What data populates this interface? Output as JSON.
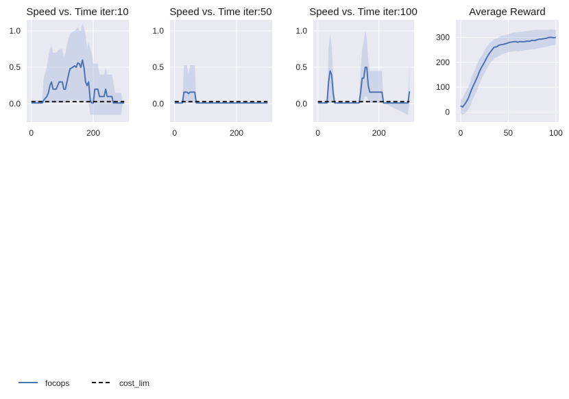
{
  "colors": {
    "panel_bg": "#e8e9f1",
    "grid": "#ffffff",
    "series": "#4c72b0",
    "band": "#b8c5e0",
    "limit": "#111111"
  },
  "legend": {
    "items": [
      {
        "label": "focops",
        "style": "solid"
      },
      {
        "label": "cost_lim",
        "style": "dashed"
      }
    ],
    "placement": "bottom-left"
  },
  "chart_data": [
    {
      "type": "line",
      "title": "Speed vs. Time iter:10",
      "xlim": [
        -15,
        315
      ],
      "ylim": [
        -0.25,
        1.15
      ],
      "xticks": [
        0,
        200
      ],
      "yticks": [
        0.0,
        0.5,
        1.0
      ],
      "xtick_labels": [
        "0",
        "200"
      ],
      "ytick_labels": [
        "0.0",
        "0.5",
        "1.0"
      ],
      "series": [
        {
          "name": "focops",
          "x": [
            0,
            35,
            40,
            50,
            55,
            60,
            65,
            70,
            80,
            90,
            100,
            105,
            110,
            120,
            125,
            130,
            140,
            145,
            150,
            155,
            160,
            165,
            170,
            175,
            180,
            185,
            190,
            195,
            200,
            205,
            210,
            215,
            220,
            225,
            230,
            235,
            240,
            245,
            250,
            255,
            260,
            265,
            270,
            275,
            280,
            285,
            290,
            295,
            300
          ],
          "y": [
            0.01,
            0.01,
            0.05,
            0.1,
            0.15,
            0.25,
            0.3,
            0.2,
            0.2,
            0.3,
            0.3,
            0.2,
            0.2,
            0.4,
            0.48,
            0.49,
            0.52,
            0.5,
            0.56,
            0.55,
            0.5,
            0.6,
            0.5,
            0.3,
            0.25,
            0.3,
            0.05,
            0.01,
            0.01,
            0.2,
            0.2,
            0.2,
            0.1,
            0.1,
            0.1,
            0.1,
            0.2,
            0.1,
            0.1,
            0.1,
            0.1,
            0.01,
            0.01,
            0.01,
            0.01,
            0.01,
            0.01,
            0.01,
            0.01
          ],
          "lower": [
            0.01,
            0.01,
            0.01,
            0.01,
            0.01,
            0.01,
            0.01,
            0.01,
            0.01,
            0.01,
            0.01,
            0.01,
            0.01,
            0.05,
            0.05,
            0.05,
            0.05,
            0.05,
            0.05,
            0.05,
            0.05,
            0.05,
            0.05,
            0.01,
            0.01,
            0.01,
            -0.15,
            -0.15,
            -0.15,
            -0.15,
            -0.15,
            -0.15,
            -0.15,
            -0.15,
            -0.15,
            -0.15,
            -0.15,
            -0.15,
            -0.15,
            -0.15,
            -0.15,
            -0.15,
            -0.15,
            -0.15,
            -0.15,
            -0.15,
            -0.15,
            0.01,
            0.01
          ],
          "upper": [
            0.05,
            0.05,
            0.35,
            0.5,
            0.65,
            0.75,
            0.8,
            0.7,
            0.7,
            0.75,
            0.75,
            0.65,
            0.7,
            0.9,
            0.95,
            0.98,
            1.0,
            1.02,
            1.05,
            1.0,
            1.0,
            1.1,
            1.05,
            0.95,
            0.75,
            0.85,
            0.75,
            0.7,
            0.55,
            0.55,
            0.55,
            0.55,
            0.4,
            0.4,
            0.4,
            0.4,
            0.5,
            0.4,
            0.4,
            0.4,
            0.4,
            0.3,
            0.15,
            0.15,
            0.15,
            0.15,
            0.15,
            0.05,
            0.05
          ]
        },
        {
          "name": "cost_lim",
          "x": [
            0,
            300
          ],
          "y": [
            0.03,
            0.03
          ]
        }
      ]
    },
    {
      "type": "line",
      "title": "Speed vs. Time iter:50",
      "xlim": [
        -15,
        315
      ],
      "ylim": [
        -0.25,
        1.15
      ],
      "xticks": [
        0,
        200
      ],
      "yticks": [
        0.0,
        0.5,
        1.0
      ],
      "xtick_labels": [
        "0",
        "200"
      ],
      "ytick_labels": [
        "0.0",
        "0.5",
        "1.0"
      ],
      "series": [
        {
          "name": "focops",
          "x": [
            0,
            25,
            30,
            40,
            45,
            50,
            60,
            65,
            70,
            300
          ],
          "y": [
            0.01,
            0.01,
            0.16,
            0.16,
            0.14,
            0.16,
            0.16,
            0.16,
            0.01,
            0.01
          ],
          "lower": [
            0.01,
            0.01,
            0.01,
            0.01,
            0.01,
            0.01,
            0.01,
            0.01,
            0.01,
            0.01
          ],
          "upper": [
            0.01,
            0.01,
            0.53,
            0.53,
            0.4,
            0.53,
            0.53,
            0.53,
            0.01,
            0.01
          ]
        },
        {
          "name": "cost_lim",
          "x": [
            0,
            300
          ],
          "y": [
            0.03,
            0.03
          ]
        }
      ]
    },
    {
      "type": "line",
      "title": "Speed vs. Time iter:100",
      "xlim": [
        -15,
        315
      ],
      "ylim": [
        -0.25,
        1.15
      ],
      "xticks": [
        0,
        200
      ],
      "yticks": [
        0.0,
        0.5,
        1.0
      ],
      "xtick_labels": [
        "0",
        "200"
      ],
      "ytick_labels": [
        "0.0",
        "0.5",
        "1.0"
      ],
      "series": [
        {
          "name": "focops",
          "x": [
            0,
            30,
            35,
            40,
            45,
            50,
            55,
            135,
            140,
            145,
            150,
            155,
            160,
            165,
            170,
            175,
            180,
            190,
            200,
            210,
            215,
            295,
            300
          ],
          "y": [
            0.01,
            0.01,
            0.3,
            0.45,
            0.4,
            0.15,
            0.01,
            0.01,
            0.15,
            0.35,
            0.35,
            0.5,
            0.5,
            0.25,
            0.16,
            0.16,
            0.16,
            0.16,
            0.16,
            0.16,
            0.01,
            0.01,
            0.17
          ],
          "lower": [
            0.01,
            0.01,
            0.01,
            0.01,
            0.01,
            0.01,
            0.01,
            0.01,
            0.01,
            0.01,
            0.05,
            0.1,
            0.1,
            0.05,
            0.01,
            0.01,
            0.01,
            0.01,
            0.01,
            0.01,
            0.01,
            -0.15,
            0.01
          ],
          "upper": [
            0.01,
            0.01,
            0.75,
            0.95,
            0.8,
            0.4,
            0.01,
            0.01,
            0.45,
            0.75,
            0.85,
            1.0,
            0.9,
            0.6,
            0.45,
            0.45,
            0.45,
            0.45,
            0.45,
            0.45,
            0.01,
            0.01,
            0.53
          ]
        },
        {
          "name": "cost_lim",
          "x": [
            0,
            300
          ],
          "y": [
            0.03,
            0.03
          ]
        }
      ]
    },
    {
      "type": "line",
      "title": "Average Reward",
      "xlim": [
        -5,
        103
      ],
      "ylim": [
        -40,
        370
      ],
      "xticks": [
        0,
        50,
        100
      ],
      "yticks": [
        0,
        100,
        200,
        300
      ],
      "xtick_labels": [
        "0",
        "50",
        "100"
      ],
      "ytick_labels": [
        "0",
        "100",
        "200",
        "300"
      ],
      "series": [
        {
          "name": "focops",
          "x": [
            0,
            2,
            5,
            8,
            10,
            12,
            15,
            18,
            20,
            22,
            25,
            27,
            30,
            33,
            35,
            38,
            40,
            42,
            45,
            48,
            50,
            52,
            55,
            58,
            60,
            62,
            65,
            68,
            70,
            72,
            75,
            78,
            80,
            82,
            85,
            88,
            90,
            92,
            95,
            98,
            100
          ],
          "y": [
            25,
            20,
            35,
            55,
            75,
            95,
            120,
            145,
            165,
            180,
            200,
            215,
            235,
            250,
            260,
            262,
            268,
            270,
            272,
            275,
            278,
            280,
            282,
            283,
            280,
            283,
            282,
            283,
            285,
            284,
            288,
            287,
            290,
            292,
            293,
            295,
            296,
            299,
            300,
            298,
            300
          ],
          "lower": [
            -5,
            -10,
            -5,
            10,
            25,
            45,
            70,
            95,
            115,
            135,
            155,
            170,
            190,
            205,
            215,
            220,
            225,
            230,
            235,
            238,
            240,
            242,
            243,
            245,
            243,
            245,
            245,
            248,
            250,
            250,
            252,
            252,
            255,
            257,
            258,
            260,
            262,
            265,
            268,
            268,
            270
          ],
          "upper": [
            50,
            55,
            80,
            100,
            120,
            145,
            170,
            200,
            215,
            225,
            245,
            260,
            275,
            285,
            292,
            295,
            300,
            305,
            308,
            310,
            312,
            315,
            318,
            320,
            320,
            322,
            322,
            325,
            326,
            326,
            328,
            330,
            330,
            330,
            330,
            330,
            330,
            330,
            332,
            330,
            330
          ]
        }
      ]
    }
  ]
}
